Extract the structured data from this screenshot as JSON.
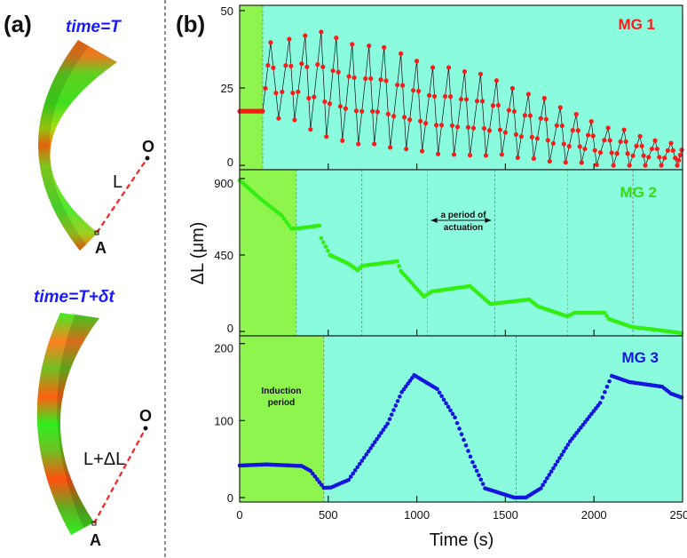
{
  "panel_a": {
    "label": "(a)",
    "top": {
      "time": "time=T",
      "O": "O",
      "L": "L",
      "A": "A"
    },
    "bottom": {
      "time": "time=T+δt",
      "O": "O",
      "L": "L+ΔL",
      "A": "A"
    }
  },
  "panel_b": {
    "label": "(b)"
  },
  "colors": {
    "induction": "#8ef54e",
    "actuation": "#8afcdd",
    "mg1": "#ff1a1a",
    "mg2": "#33ee11",
    "mg3": "#1515e0",
    "radius_line": "#ff2020"
  },
  "chart_data": {
    "type": "scatter",
    "title": "",
    "xlabel": "Time (s)",
    "ylabel": "ΔL (μm)",
    "xlim": [
      0,
      2500
    ],
    "xticks": [
      0,
      500,
      1000,
      1500,
      2000,
      2500
    ],
    "panels": [
      {
        "name": "MG 1",
        "ylim": [
          -1.4,
          51.7
        ],
        "yticks": [
          0,
          25,
          50
        ],
        "induction_end": 130,
        "induction_value": 17.5,
        "connected": true,
        "peaks": [
          [
            175,
            39.7
          ],
          [
            280,
            40.8
          ],
          [
            370,
            41.9
          ],
          [
            460,
            43.1
          ],
          [
            545,
            41.2
          ],
          [
            635,
            39.1
          ],
          [
            730,
            38.6
          ],
          [
            815,
            38.1
          ],
          [
            910,
            36.1
          ],
          [
            1000,
            33.7
          ],
          [
            1090,
            31.6
          ],
          [
            1180,
            31.6
          ],
          [
            1270,
            30.3
          ],
          [
            1360,
            29.5
          ],
          [
            1450,
            27.4
          ],
          [
            1540,
            24.9
          ],
          [
            1630,
            23.0
          ],
          [
            1720,
            21.7
          ],
          [
            1810,
            18.7
          ],
          [
            1900,
            16.5
          ],
          [
            1985,
            14.2
          ],
          [
            2080,
            12.1
          ],
          [
            2170,
            11.5
          ],
          [
            2260,
            9.4
          ],
          [
            2345,
            8.0
          ],
          [
            2435,
            7.2
          ],
          [
            2495,
            5.0
          ]
        ],
        "troughs": [
          [
            220,
            15.2
          ],
          [
            310,
            14.7
          ],
          [
            400,
            11.6
          ],
          [
            490,
            9.3
          ],
          [
            580,
            8.0
          ],
          [
            670,
            6.9
          ],
          [
            760,
            6.9
          ],
          [
            850,
            5.8
          ],
          [
            940,
            5.3
          ],
          [
            1030,
            4.6
          ],
          [
            1120,
            3.7
          ],
          [
            1210,
            3.5
          ],
          [
            1300,
            3.3
          ],
          [
            1390,
            3.2
          ],
          [
            1480,
            3.5
          ],
          [
            1570,
            2.5
          ],
          [
            1660,
            2.2
          ],
          [
            1750,
            1.3
          ],
          [
            1840,
            1.0
          ],
          [
            1930,
            0.9
          ],
          [
            2015,
            0.2
          ],
          [
            2110,
            0
          ],
          [
            2200,
            0
          ],
          [
            2290,
            0
          ],
          [
            2380,
            0
          ],
          [
            2470,
            0
          ]
        ],
        "dashed_lines": [
          {
            "t": 130,
            "color": "#6a9a30"
          }
        ]
      },
      {
        "name": "MG 2",
        "ylim": [
          -26,
          952
        ],
        "yticks": [
          0,
          450,
          900
        ],
        "induction_end": 320,
        "connected": false,
        "points": [
          [
            0,
            890
          ],
          [
            115,
            783
          ],
          [
            240,
            680
          ],
          [
            290,
            607
          ],
          [
            335,
            607
          ],
          [
            450,
            623
          ],
          [
            460,
            549
          ],
          [
            510,
            450
          ],
          [
            615,
            398
          ],
          [
            665,
            361
          ],
          [
            690,
            386
          ],
          [
            890,
            413
          ],
          [
            910,
            356
          ],
          [
            1040,
            205
          ],
          [
            1085,
            235
          ],
          [
            1300,
            267
          ],
          [
            1415,
            162
          ],
          [
            1635,
            188
          ],
          [
            1685,
            147
          ],
          [
            1850,
            89
          ],
          [
            1890,
            110
          ],
          [
            2060,
            110
          ],
          [
            2085,
            73
          ],
          [
            2215,
            26
          ],
          [
            2350,
            10
          ],
          [
            2495,
            -10
          ]
        ],
        "dashed_lines": [
          {
            "t": 320,
            "color": "#8a8a70"
          },
          {
            "t": 690,
            "color": "#c06070"
          },
          {
            "t": 1060,
            "color": "#80b060"
          },
          {
            "t": 1440,
            "color": "#808080"
          },
          {
            "t": 1850,
            "color": "#b0a040"
          },
          {
            "t": 2220,
            "color": "#b05070"
          }
        ],
        "annotation": {
          "line1": "a period of",
          "line2": "actuation",
          "from": 1060,
          "to": 1440
        }
      },
      {
        "name": "MG 3",
        "ylim": [
          -5.8,
          210
        ],
        "yticks": [
          0,
          100,
          200
        ],
        "induction_end": 475,
        "connected": false,
        "points": [
          [
            0,
            41.6
          ],
          [
            150,
            43
          ],
          [
            350,
            41
          ],
          [
            400,
            34.7
          ],
          [
            475,
            12.7
          ],
          [
            515,
            13
          ],
          [
            615,
            23
          ],
          [
            715,
            56
          ],
          [
            835,
            96
          ],
          [
            915,
            137
          ],
          [
            985,
            159
          ],
          [
            1115,
            141
          ],
          [
            1215,
            104
          ],
          [
            1315,
            46
          ],
          [
            1385,
            12
          ],
          [
            1550,
            0
          ],
          [
            1615,
            0
          ],
          [
            1700,
            12
          ],
          [
            1865,
            73
          ],
          [
            2035,
            123
          ],
          [
            2100,
            158
          ],
          [
            2200,
            150
          ],
          [
            2385,
            144
          ],
          [
            2435,
            135
          ],
          [
            2495,
            130
          ]
        ],
        "dashed_lines": [
          {
            "t": 475,
            "color": "#808080"
          },
          {
            "t": 1560,
            "color": "#808080"
          }
        ],
        "annotation": {
          "line1": "Induction",
          "line2": "period"
        }
      }
    ]
  }
}
